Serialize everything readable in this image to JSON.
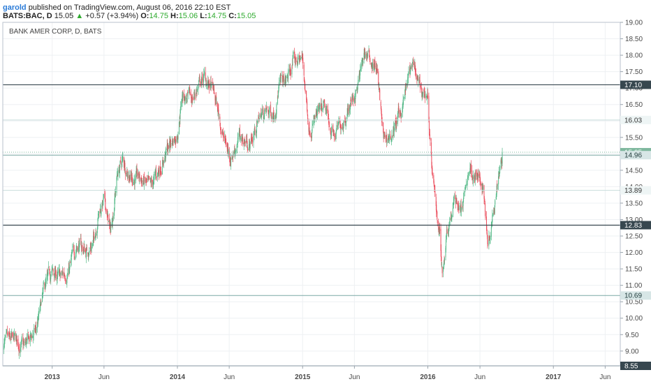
{
  "header": {
    "username": "garold",
    "published": "published on TradingView.com, August 06, 2016 22:10 EST",
    "symbol": "BATS:BAC, D",
    "last": "15.05",
    "change_arrow": "▲",
    "change": "+0.57 (+3.94%)",
    "o_label": "O:",
    "o_value": "14.75",
    "h_label": "H:",
    "h_value": "15.06",
    "l_label": "L:",
    "l_value": "14.75",
    "c_label": "C:",
    "c_value": "15.05"
  },
  "chart_data": {
    "type": "candlestick",
    "title": "BANK AMER CORP, D, BATS",
    "y_ticks": [
      "9.00",
      "9.50",
      "10.00",
      "10.50",
      "11.00",
      "11.50",
      "12.00",
      "12.50",
      "13.00",
      "13.50",
      "14.00",
      "14.50",
      "15.00",
      "15.50",
      "16.00",
      "16.50",
      "17.00",
      "17.50",
      "18.00",
      "18.50",
      "19.00"
    ],
    "ylim": [
      8.55,
      19.0
    ],
    "x_ticks": [
      {
        "label": "2013",
        "date": "2013-01-01"
      },
      {
        "label": "Jun",
        "date": "2013-06-01"
      },
      {
        "label": "2014",
        "date": "2014-01-01"
      },
      {
        "label": "Jun",
        "date": "2014-06-01"
      },
      {
        "label": "2015",
        "date": "2015-01-01"
      },
      {
        "label": "Jun",
        "date": "2015-06-01"
      },
      {
        "label": "2016",
        "date": "2016-01-01"
      },
      {
        "label": "Jun",
        "date": "2016-06-01"
      },
      {
        "label": "2017",
        "date": "2017-01-01"
      },
      {
        "label": "Jun",
        "date": "2017-06-01"
      }
    ],
    "x_range": [
      "2012-08-10",
      "2017-07-15"
    ],
    "horizontal_levels": [
      {
        "value": 17.1,
        "label": "17.10",
        "style": "dark"
      },
      {
        "value": 16.03,
        "label": "16.03",
        "style": "light"
      },
      {
        "value": 15.05,
        "label": "15.05",
        "style": "current"
      },
      {
        "value": 14.96,
        "label": "14.96",
        "style": "teal"
      },
      {
        "value": 13.89,
        "label": "13.89",
        "style": "light"
      },
      {
        "value": 12.83,
        "label": "12.83",
        "style": "dark"
      },
      {
        "value": 10.69,
        "label": "10.69",
        "style": "teal"
      },
      {
        "value": 8.55,
        "label": "8.55",
        "style": "dark"
      }
    ],
    "series": [
      {
        "name": "BAC daily (approx. closes)",
        "points": [
          [
            "2012-08-10",
            9.2
          ],
          [
            "2012-09-14",
            9.3
          ],
          [
            "2012-10-10",
            9.1
          ],
          [
            "2012-11-15",
            9.6
          ],
          [
            "2012-12-10",
            10.9
          ],
          [
            "2012-12-31",
            11.4
          ],
          [
            "2013-01-25",
            11.2
          ],
          [
            "2013-02-20",
            11.5
          ],
          [
            "2013-03-15",
            12.3
          ],
          [
            "2013-04-10",
            12.0
          ],
          [
            "2013-05-01",
            12.3
          ],
          [
            "2013-05-15",
            13.2
          ],
          [
            "2013-06-01",
            13.6
          ],
          [
            "2013-06-20",
            12.6
          ],
          [
            "2013-07-10",
            14.4
          ],
          [
            "2013-07-25",
            14.8
          ],
          [
            "2013-08-20",
            14.3
          ],
          [
            "2013-09-20",
            14.2
          ],
          [
            "2013-10-15",
            13.9
          ],
          [
            "2013-11-15",
            14.7
          ],
          [
            "2013-12-10",
            15.3
          ],
          [
            "2013-12-31",
            15.6
          ],
          [
            "2014-01-15",
            16.8
          ],
          [
            "2014-02-10",
            16.6
          ],
          [
            "2014-03-05",
            17.1
          ],
          [
            "2014-03-20",
            17.3
          ],
          [
            "2014-04-15",
            16.9
          ],
          [
            "2014-05-01",
            16.2
          ],
          [
            "2014-05-15",
            15.5
          ],
          [
            "2014-06-05",
            14.9
          ],
          [
            "2014-07-01",
            15.5
          ],
          [
            "2014-08-01",
            15.3
          ],
          [
            "2014-09-01",
            16.2
          ],
          [
            "2014-10-10",
            16.3
          ],
          [
            "2014-10-25",
            17.1
          ],
          [
            "2014-11-15",
            17.2
          ],
          [
            "2014-12-05",
            17.8
          ],
          [
            "2014-12-31",
            17.9
          ],
          [
            "2015-01-20",
            15.8
          ],
          [
            "2015-02-10",
            16.1
          ],
          [
            "2015-03-05",
            16.3
          ],
          [
            "2015-04-05",
            15.5
          ],
          [
            "2015-05-10",
            16.3
          ],
          [
            "2015-06-10",
            17.0
          ],
          [
            "2015-07-01",
            18.1
          ],
          [
            "2015-07-22",
            17.8
          ],
          [
            "2015-08-05",
            17.6
          ],
          [
            "2015-08-25",
            15.4
          ],
          [
            "2015-09-20",
            15.6
          ],
          [
            "2015-10-15",
            16.3
          ],
          [
            "2015-11-15",
            17.7
          ],
          [
            "2015-12-10",
            16.9
          ],
          [
            "2015-12-31",
            16.8
          ],
          [
            "2016-01-15",
            14.1
          ],
          [
            "2016-02-05",
            12.6
          ],
          [
            "2016-02-12",
            11.3
          ],
          [
            "2016-02-25",
            12.7
          ],
          [
            "2016-03-20",
            13.6
          ],
          [
            "2016-04-10",
            13.3
          ],
          [
            "2016-05-01",
            14.6
          ],
          [
            "2016-05-20",
            14.3
          ],
          [
            "2016-06-10",
            14.0
          ],
          [
            "2016-06-25",
            12.3
          ],
          [
            "2016-07-10",
            13.4
          ],
          [
            "2016-07-25",
            14.5
          ],
          [
            "2016-08-05",
            15.05
          ]
        ]
      }
    ],
    "colors": {
      "up": "#53b987",
      "down": "#eb4d5c",
      "dark_level": "#37474f",
      "teal_level": "#7ba8a6",
      "light_level": "#c8dddc",
      "current": "#7fb89e",
      "grid": "#eef0f3",
      "axis_text": "#4a4a4a"
    }
  }
}
